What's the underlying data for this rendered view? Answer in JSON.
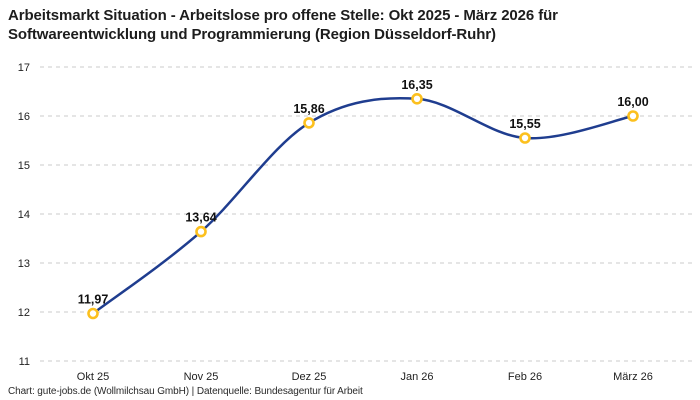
{
  "title": {
    "line1": "Arbeitsmarkt Situation - Arbeitslose pro offene Stelle: Okt 2025 - März 2026 für",
    "line2": "Softwareentwicklung und Programmierung (Region Düsseldorf-Ruhr)"
  },
  "footer": {
    "text": "Chart: gute-jobs.de (Wollmilchsau GmbH) | Datenquelle: Bundesagentur für Arbeit"
  },
  "chart_data": {
    "type": "line",
    "title": "Arbeitsmarkt Situation - Arbeitslose pro offene Stelle: Okt 2025 - März 2026 für Softwareentwicklung und Programmierung (Region Düsseldorf-Ruhr)",
    "categories": [
      "Okt 25",
      "Nov 25",
      "Dez 25",
      "Jan 26",
      "Feb 26",
      "März 26"
    ],
    "values": [
      11.97,
      13.64,
      15.86,
      16.35,
      15.55,
      16.0
    ],
    "value_labels": [
      "11,97",
      "13,64",
      "15,86",
      "16,35",
      "15,55",
      "16,00"
    ],
    "xlabel": "",
    "ylabel": "",
    "ylim": [
      11,
      17
    ],
    "yticks": [
      11,
      12,
      13,
      14,
      15,
      16,
      17
    ],
    "grid": "horizontal-dashed",
    "legend": "none",
    "curve": "smooth-spline",
    "colors": {
      "line": "#1f3d8f",
      "marker_ring": "#fcc01e",
      "marker_fill": "#ffffff",
      "grid": "#cbcbcb",
      "tick_text": "#222222",
      "value_label_text": "#111111"
    }
  }
}
